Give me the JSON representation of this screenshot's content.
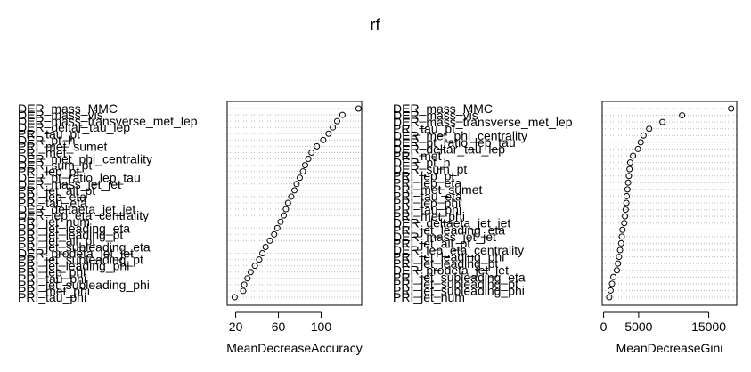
{
  "title": "rf",
  "chart_data": [
    {
      "type": "scatter",
      "subtype": "dotchart",
      "xlabel": "MeanDecreaseAccuracy",
      "ylabel": "",
      "xlim": [
        12,
        138
      ],
      "xticks": [
        20,
        60,
        100
      ],
      "xtick_labels": [
        "20",
        "60",
        "100"
      ],
      "grid": "dotted horizontal",
      "categories": [
        "DER_mass_MMC",
        "DER_mass_vis",
        "DER_mass_transverse_met_lep",
        "DER_deltar_tau_lep",
        "PRI_tau_pt",
        "DER_pt_h",
        "PRI_met_sumet",
        "PRI_met",
        "DER_met_phi_centrality",
        "DER_sum_pt",
        "PRI_lep_pt",
        "DER_pt_ratio_lep_tau",
        "DER_mass_jet_jet",
        "PRI_jet_all_pt",
        "PRI_lep_eta",
        "PRI_tau_eta",
        "DER_deltaeta_jet_jet",
        "DER_lep_eta_centrality",
        "PRI_jet_num",
        "PRI_jet_leading_eta",
        "PRI_jet_leading_pt",
        "PRI_jet_all_pt",
        "PRI_jet_subleading_eta",
        "DER_prodeta_jet_jet",
        "PRI_jet_subleading_pt",
        "PRI_jet_leading_phi",
        "PRI_lep_phi",
        "PRI_tau_phi",
        "PRI_jet_subleading_phi",
        "PRI_met_phi",
        "PRI_tau_phi"
      ],
      "values": [
        135,
        120,
        115,
        111,
        107,
        102,
        96,
        91,
        88,
        85,
        83,
        80,
        77,
        75,
        72,
        69,
        67,
        65,
        62,
        59,
        56,
        52,
        48,
        45,
        42,
        38,
        34,
        31,
        28,
        27,
        19
      ]
    },
    {
      "type": "scatter",
      "subtype": "dotchart",
      "xlabel": "MeanDecreaseGini",
      "ylabel": "",
      "xlim": [
        -200,
        19000
      ],
      "xticks": [
        0,
        5000,
        15000
      ],
      "xtick_labels": [
        "0",
        "5000",
        "15000"
      ],
      "grid": "dotted horizontal",
      "categories": [
        "DER_mass_MMC",
        "DER_mass_vis",
        "DER_mass_transverse_met_lep",
        "PRI_tau_pt",
        "DER_met_phi_centrality",
        "DER_pt_ratio_lep_tau",
        "DER_deltar_tau_lep",
        "PRI_met",
        "DER_pt_h",
        "DER_sum_pt",
        "PRI_lep_pt",
        "PRI_lep_eta",
        "PRI_met_sumet",
        "PRI_tau_eta",
        "PRI_lep_phi",
        "PRI_tau_phi",
        "PRI_met_phi",
        "DER_deltaeta_jet_jet",
        "PRI_jet_leading_eta",
        "DER_mass_jet_jet",
        "PRI_jet_all_pt",
        "DER_lep_eta_centrality",
        "PRI_jet_leading_phi",
        "PRI_jet_leading_pt",
        "DER_prodeta_jet_jet",
        "PRI_jet_subleading_eta",
        "PRI_jet_subleading_pt",
        "PRI_jet_subleading_phi",
        "PRI_jet_num"
      ],
      "values": [
        18200,
        11200,
        8400,
        6500,
        5700,
        5300,
        4900,
        4200,
        3800,
        3700,
        3600,
        3500,
        3400,
        3300,
        3250,
        3150,
        3050,
        2950,
        2700,
        2600,
        2500,
        2350,
        2200,
        2050,
        1900,
        1400,
        1200,
        1000,
        800
      ]
    }
  ]
}
